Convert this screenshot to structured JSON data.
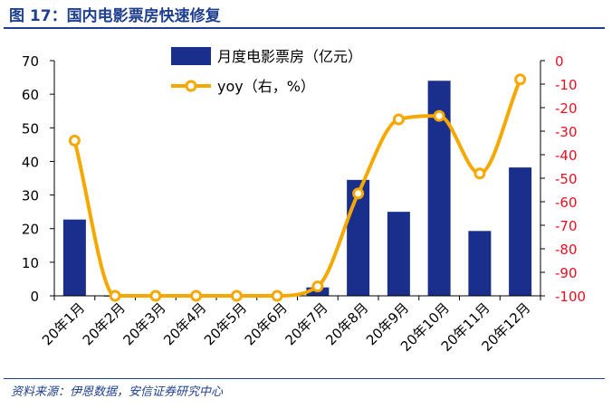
{
  "figure": {
    "title": "图 17：国内电影票房快速修复",
    "source": "资料来源：伊恩数据，安信证券研究中心"
  },
  "colors": {
    "bar": "#1a2e8c",
    "line": "#f5a800",
    "right_axis": "#e8101e",
    "title": "#1f3f8f",
    "axis": "#000000"
  },
  "chart_data": {
    "type": "bar",
    "categories": [
      "20年1月",
      "20年2月",
      "20年3月",
      "20年4月",
      "20年5月",
      "20年6月",
      "20年7月",
      "20年8月",
      "20年9月",
      "20年10月",
      "20年11月",
      "20年12月"
    ],
    "series": [
      {
        "name": "月度电影票房（亿元）",
        "type": "bar",
        "axis": "left",
        "values": [
          22.7,
          0,
          0.05,
          0,
          0,
          0,
          2.5,
          34.5,
          25,
          64,
          19.3,
          38.2
        ]
      },
      {
        "name": "yoy（右，%）",
        "type": "line",
        "axis": "right",
        "smooth": true,
        "values": [
          -34,
          -100,
          -100,
          -100,
          -100,
          -100,
          -96,
          -56.5,
          -25,
          -23.5,
          -48,
          -8
        ]
      }
    ],
    "y_left": {
      "min": 0,
      "max": 70,
      "ticks": [
        0,
        10,
        20,
        30,
        40,
        50,
        60,
        70
      ]
    },
    "y_right": {
      "min": -100,
      "max": 0,
      "ticks": [
        0,
        -10,
        -20,
        -30,
        -40,
        -50,
        -60,
        -70,
        -80,
        -90,
        -100
      ]
    },
    "grid": false,
    "legend_position": "top-center"
  }
}
